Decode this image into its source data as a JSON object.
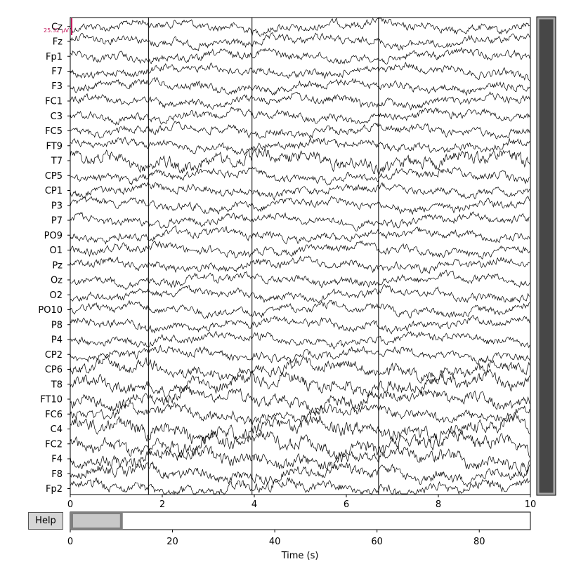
{
  "window": {
    "help_label": "Help",
    "xlabel": "Time (s)"
  },
  "main_plot": {
    "scale_bar_label": "25.32 µV",
    "scale_bar_color": "#c2185b",
    "trace_color": "#000000",
    "channels": [
      "Cz",
      "Fz",
      "Fp1",
      "F7",
      "F3",
      "FC1",
      "C3",
      "FC5",
      "FT9",
      "T7",
      "CP5",
      "CP1",
      "P3",
      "P7",
      "PO9",
      "O1",
      "Pz",
      "Oz",
      "O2",
      "PO10",
      "P8",
      "P4",
      "CP2",
      "CP6",
      "T8",
      "FT10",
      "FC6",
      "C4",
      "FC2",
      "F4",
      "F8",
      "Fp2"
    ],
    "xlim": [
      0,
      10
    ],
    "xticks": [
      "0",
      "2",
      "4",
      "6",
      "8",
      "10"
    ],
    "event_markers_s": [
      1.7,
      3.95,
      6.7
    ]
  },
  "overview": {
    "xlim": [
      0,
      90
    ],
    "xticks": [
      "0",
      "20",
      "40",
      "60",
      "80"
    ],
    "view_window_s": [
      0,
      10
    ]
  },
  "channel_scrollbar": {
    "fill_color": "#474747",
    "border_color": "#a8a8a8",
    "visible_fraction": 1.0
  }
}
